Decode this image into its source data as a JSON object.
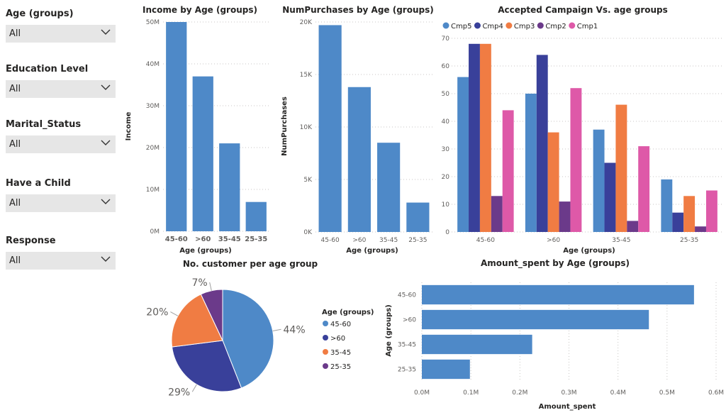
{
  "slicers": [
    {
      "title": "Age (groups)",
      "value": "All"
    },
    {
      "title": "Education Level",
      "value": "All"
    },
    {
      "title": "Marital_Status",
      "value": "All"
    },
    {
      "title": "Have a Child",
      "value": "All"
    },
    {
      "title": "Response",
      "value": "All"
    }
  ],
  "colors": {
    "blue": "#4e89c8",
    "navy": "#39409a",
    "orange": "#f07c43",
    "purple": "#6b3a8a",
    "pink": "#de59a8",
    "dark_purple": "#6b3a8a"
  },
  "chart_data": [
    {
      "id": "income",
      "type": "bar",
      "title": "Income by Age (groups)",
      "xlabel": "Age (groups)",
      "ylabel": "Income",
      "categories": [
        "45-60",
        ">60",
        "35-45",
        "25-35"
      ],
      "values": [
        50000000,
        37000000,
        21000000,
        7000000
      ],
      "yticks": [
        "0M",
        "10M",
        "20M",
        "30M",
        "40M",
        "50M"
      ],
      "ylim": [
        0,
        50000000
      ],
      "color": "#4e89c8"
    },
    {
      "id": "purchases",
      "type": "bar",
      "title": "NumPurchases by Age (groups)",
      "xlabel": "Age (groups)",
      "ylabel": "NumPurchases",
      "categories": [
        "45-60",
        ">60",
        "35-45",
        "25-35"
      ],
      "values": [
        19700,
        13800,
        8500,
        2800
      ],
      "yticks": [
        "0K",
        "5K",
        "10K",
        "15K",
        "20K"
      ],
      "ylim": [
        0,
        20000
      ],
      "color": "#4e89c8"
    },
    {
      "id": "campaign",
      "type": "bar",
      "title": "Accepted Campaign Vs. age groups",
      "xlabel": "Age (groups)",
      "categories": [
        "45-60",
        ">60",
        "35-45",
        "25-35"
      ],
      "series": [
        {
          "name": "Cmp5",
          "color": "#4e89c8",
          "values": [
            56,
            50,
            37,
            19
          ]
        },
        {
          "name": "Cmp4",
          "color": "#39409a",
          "values": [
            68,
            64,
            25,
            7
          ]
        },
        {
          "name": "Cmp3",
          "color": "#f07c43",
          "values": [
            68,
            36,
            46,
            13
          ]
        },
        {
          "name": "Cmp2",
          "color": "#6b3a8a",
          "values": [
            13,
            11,
            4,
            2
          ]
        },
        {
          "name": "Cmp1",
          "color": "#de59a8",
          "values": [
            44,
            52,
            31,
            15
          ]
        }
      ],
      "yticks": [
        "0",
        "10",
        "20",
        "30",
        "40",
        "50",
        "60",
        "70"
      ],
      "ylim": [
        0,
        70
      ],
      "legend": "top-left"
    },
    {
      "id": "pie",
      "type": "pie",
      "title": "No. customer per age group",
      "legend_title": "Age (groups)",
      "slices": [
        {
          "label": "45-60",
          "pct_label": "44%",
          "value": 44,
          "color": "#4e89c8"
        },
        {
          "label": ">60",
          "pct_label": "29%",
          "value": 29,
          "color": "#39409a"
        },
        {
          "label": "35-45",
          "pct_label": "20%",
          "value": 20,
          "color": "#f07c43"
        },
        {
          "label": "25-35",
          "pct_label": "7%",
          "value": 7,
          "color": "#6b3a8a"
        }
      ],
      "legend": "right"
    },
    {
      "id": "amount",
      "type": "bar",
      "orientation": "horizontal",
      "title": "Amount_spent by Age (groups)",
      "xlabel": "Amount_spent",
      "ylabel": "Age (groups)",
      "categories": [
        "45-60",
        ">60",
        "35-45",
        "25-35"
      ],
      "values": [
        555000,
        463000,
        225000,
        98000
      ],
      "xticks": [
        "0.0M",
        "0.1M",
        "0.2M",
        "0.3M",
        "0.4M",
        "0.5M",
        "0.6M"
      ],
      "xlim": [
        0,
        600000
      ],
      "color": "#4e89c8"
    }
  ]
}
